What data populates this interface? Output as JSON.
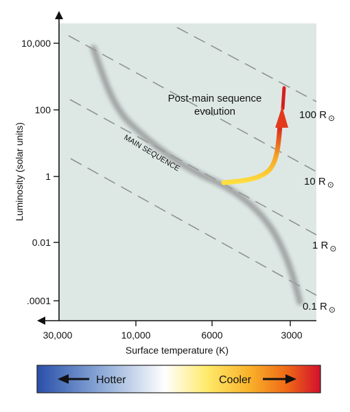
{
  "y_axis": {
    "label": "Luminosity (solar units)",
    "ticks": [
      "10,000",
      "100",
      "1",
      "0.01",
      ".0001"
    ]
  },
  "x_axis": {
    "label": "Surface temperature (K)",
    "ticks": [
      "30,000",
      "10,000",
      "6000",
      "3000"
    ]
  },
  "main_sequence_label": "MAIN SEQUENCE",
  "post_main_label": [
    "Post-main sequence",
    "evolution"
  ],
  "radius_lines": [
    {
      "label": "100 R",
      "symbol": "⊙"
    },
    {
      "label": "10 R",
      "symbol": "⊙"
    },
    {
      "label": "1 R",
      "symbol": "⊙"
    },
    {
      "label": "0.1 R",
      "symbol": "⊙"
    }
  ],
  "color_bar": {
    "hotter": "Hotter",
    "cooler": "Cooler",
    "colors": [
      "#2a4fa8",
      "#ffffff",
      "#ffd21f",
      "#f07d13",
      "#d3102c"
    ]
  },
  "colors": {
    "plot_bg": "#dde8e5",
    "dashed_line": "#8f9290",
    "track_start": "#ffe040",
    "track_end": "#d81e1e"
  }
}
